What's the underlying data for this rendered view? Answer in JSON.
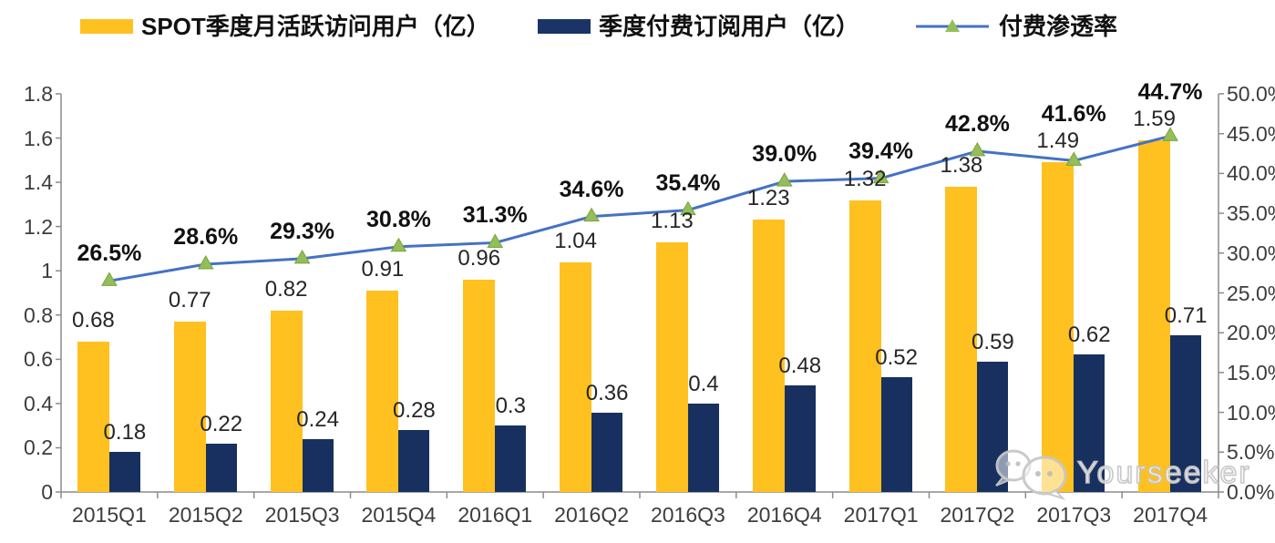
{
  "legend": [
    {
      "label": "SPOT季度月活跃访问用户（亿）",
      "swatch_color": "#FFC120",
      "type": "bar"
    },
    {
      "label": "季度付费订阅用户（亿）",
      "swatch_color": "#1B3468",
      "type": "bar"
    },
    {
      "label": "付费渗透率",
      "type": "line",
      "line_color": "#4472C4",
      "marker_color": "#94BE58"
    }
  ],
  "watermark": {
    "icon": "wechat-icon",
    "text": "Yourseeker"
  },
  "chart_data": {
    "type": "bar",
    "subtype": "grouped-bars-with-line-combo",
    "categories": [
      "2015Q1",
      "2015Q2",
      "2015Q3",
      "2015Q4",
      "2016Q1",
      "2016Q2",
      "2016Q3",
      "2016Q4",
      "2017Q1",
      "2017Q2",
      "2017Q3",
      "2017Q4"
    ],
    "series": [
      {
        "name": "SPOT季度月活跃访问用户（亿）",
        "type": "bar",
        "axis": "left",
        "color": "#FFC120",
        "values": [
          0.68,
          0.77,
          0.82,
          0.91,
          0.96,
          1.04,
          1.13,
          1.23,
          1.32,
          1.38,
          1.49,
          1.59
        ],
        "labels": [
          "0.68",
          "0.77",
          "0.82",
          "0.91",
          "0.96",
          "1.04",
          "1.13",
          "1.23",
          "1.32",
          "1.38",
          "1.49",
          "1.59"
        ]
      },
      {
        "name": "季度付费订阅用户（亿）",
        "type": "bar",
        "axis": "left",
        "color": "#17305F",
        "values": [
          0.18,
          0.22,
          0.24,
          0.28,
          0.3,
          0.36,
          0.4,
          0.48,
          0.52,
          0.59,
          0.62,
          0.71
        ],
        "labels": [
          "0.18",
          "0.22",
          "0.24",
          "0.28",
          "0.3",
          "0.36",
          "0.4",
          "0.48",
          "0.52",
          "0.59",
          "0.62",
          "0.71"
        ]
      },
      {
        "name": "付费渗透率",
        "type": "line",
        "axis": "right",
        "color": "#4472C4",
        "marker": "triangle",
        "marker_color": "#94BE58",
        "values": [
          26.5,
          28.6,
          29.3,
          30.8,
          31.3,
          34.6,
          35.4,
          39.0,
          39.4,
          42.8,
          41.6,
          44.7
        ],
        "labels": [
          "26.5%",
          "28.6%",
          "29.3%",
          "30.8%",
          "31.3%",
          "34.6%",
          "35.4%",
          "39.0%",
          "39.4%",
          "42.8%",
          "41.6%",
          "44.7%"
        ]
      }
    ],
    "left_axis": {
      "min": 0,
      "max": 1.8,
      "step": 0.2,
      "tick_labels": [
        "0",
        "0.2",
        "0.4",
        "0.6",
        "0.8",
        "1",
        "1.2",
        "1.4",
        "1.6",
        "1.8"
      ]
    },
    "right_axis": {
      "min": 0,
      "max": 50,
      "step": 5,
      "tick_labels": [
        "0.0%",
        "5.0%",
        "10.0%",
        "15.0%",
        "20.0%",
        "25.0%",
        "30.0%",
        "35.0%",
        "40.0%",
        "45.0%",
        "50.0%"
      ]
    },
    "grid": false,
    "legend_position": "top"
  }
}
